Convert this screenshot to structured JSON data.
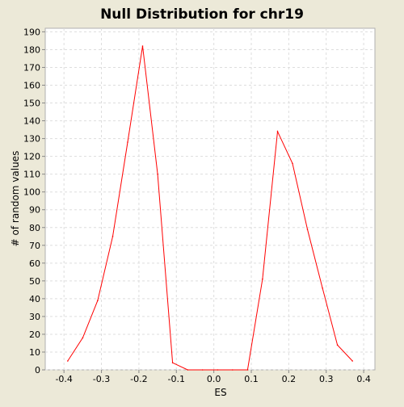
{
  "chart_data": {
    "type": "line",
    "title": "Null Distribution for chr19",
    "xlabel": "ES",
    "ylabel": "# of random values",
    "xlim": [
      -0.45,
      0.43
    ],
    "ylim": [
      0,
      192
    ],
    "xticks": [
      -0.4,
      -0.3,
      -0.2,
      -0.1,
      0.0,
      0.1,
      0.2,
      0.3,
      0.4
    ],
    "xtick_labels": [
      "-0.4",
      "-0.3",
      "-0.2",
      "-0.1",
      "0.0",
      "0.1",
      "0.2",
      "0.3",
      "0.4"
    ],
    "yticks": [
      0,
      10,
      20,
      30,
      40,
      50,
      60,
      70,
      80,
      90,
      100,
      110,
      120,
      130,
      140,
      150,
      160,
      170,
      180,
      190
    ],
    "grid": true,
    "series": [
      {
        "color": "#ff0000",
        "x": [
          -0.39,
          -0.35,
          -0.31,
          -0.27,
          -0.23,
          -0.19,
          -0.15,
          -0.11,
          -0.07,
          -0.03,
          0.01,
          0.05,
          0.09,
          0.13,
          0.17,
          0.21,
          0.25,
          0.29,
          0.33,
          0.37
        ],
        "y": [
          5,
          18,
          39,
          75,
          128,
          182,
          110,
          4,
          0,
          0,
          0,
          0,
          0,
          51,
          134,
          116,
          79,
          46,
          14,
          5
        ]
      }
    ]
  },
  "colors": {
    "page_background": "#ece9d8",
    "plot_background": "#ffffff",
    "grid": "#dddddd",
    "axis": "#888888",
    "series": "#ff0000"
  }
}
